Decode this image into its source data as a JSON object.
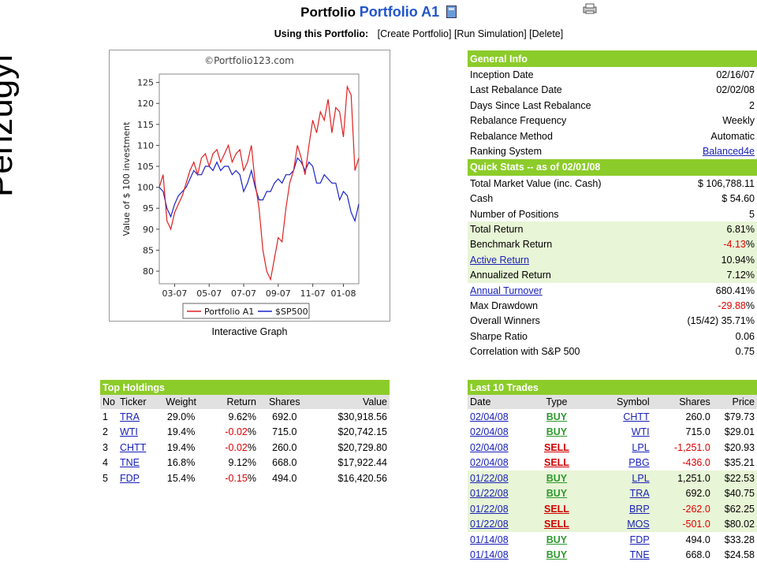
{
  "side_text": "Pénzügyi",
  "header": {
    "prefix": "Portfolio",
    "portfolio_name": "Portfolio A1",
    "using_label": "Using this Portfolio:",
    "actions": [
      "[Create Portfolio]",
      "[Run Simulation]",
      "[Delete]"
    ]
  },
  "chart_caption": "Interactive Graph",
  "chart_data": {
    "type": "line",
    "title": "©Portfolio123.com",
    "ylabel": "Value of $ 100 investment",
    "xlabel": "",
    "ylim": [
      77,
      127
    ],
    "yticks": [
      80,
      85,
      90,
      95,
      100,
      105,
      110,
      115,
      120,
      125
    ],
    "xticks": [
      "03-07",
      "05-07",
      "07-07",
      "09-07",
      "11-07",
      "01-08"
    ],
    "xtick_weeks": [
      4,
      13,
      22,
      31,
      40,
      48
    ],
    "x_range": [
      0,
      52
    ],
    "legend_position": "bottom",
    "series": [
      {
        "name": "Portfolio A1",
        "color": "#e02020",
        "values": [
          100,
          103,
          92,
          90,
          94,
          96,
          98,
          101,
          104,
          106,
          103,
          107,
          108,
          105,
          108,
          109,
          106,
          108,
          110,
          106,
          108,
          109,
          104,
          106,
          110,
          101,
          95,
          85,
          80,
          78,
          83,
          88,
          87,
          95,
          101,
          104,
          110,
          107,
          103,
          110,
          116,
          113,
          118,
          116,
          121,
          113,
          119,
          118,
          112,
          124,
          122,
          104,
          107
        ]
      },
      {
        "name": "$SP500",
        "color": "#1a22c8",
        "values": [
          100,
          99,
          95,
          93,
          96,
          98,
          99,
          100,
          102,
          104,
          103,
          103,
          105,
          105,
          104,
          106,
          104,
          105,
          105,
          103,
          104,
          103,
          99,
          101,
          104,
          100,
          97,
          97,
          99,
          99,
          101,
          102,
          101,
          103,
          103,
          104,
          107,
          106,
          104,
          106,
          105,
          101,
          101,
          103,
          102,
          101,
          101,
          97,
          99,
          98,
          94,
          92,
          96
        ]
      }
    ]
  },
  "general_info": {
    "title": "General Info",
    "rows": [
      {
        "label": "Inception Date",
        "value": "02/16/07"
      },
      {
        "label": "Last Rebalance Date",
        "value": "02/02/08"
      },
      {
        "label": "Days Since Last Rebalance",
        "value": "2"
      },
      {
        "label": "Rebalance Frequency",
        "value": "Weekly"
      },
      {
        "label": "Rebalance Method",
        "value": "Automatic"
      },
      {
        "label": "Ranking System",
        "value": "Balanced4e",
        "link": true
      }
    ]
  },
  "quick_stats": {
    "title": "Quick Stats -- as of 02/01/08",
    "rows": [
      {
        "label": "Total Market Value (inc. Cash)",
        "value": "$ 106,788.11"
      },
      {
        "label": "Cash",
        "value": "$ 54.60"
      },
      {
        "label": "Number of Positions",
        "value": "5"
      },
      {
        "label": "Total Return",
        "value": "6.81",
        "suffix": "%",
        "green": true
      },
      {
        "label": "Benchmark Return",
        "value": "-4.13",
        "suffix": "%",
        "green": true,
        "neg": true
      },
      {
        "label": "Active Return",
        "value": "10.94",
        "suffix": "%",
        "green": true,
        "link": true
      },
      {
        "label": "Annualized Return",
        "value": "7.12",
        "suffix": "%",
        "green": true
      },
      {
        "label": "Annual Turnover",
        "value": "680.41",
        "suffix": "%",
        "link": true
      },
      {
        "label": "Max Drawdown",
        "value": "-29.88",
        "suffix": "%",
        "neg": true
      },
      {
        "label": "Overall Winners",
        "value": "(15/42) 35.71%"
      },
      {
        "label": "Sharpe Ratio",
        "value": "0.06"
      },
      {
        "label": "Correlation with S&P 500",
        "value": "0.75"
      }
    ]
  },
  "top_holdings": {
    "title": "Top Holdings",
    "columns": [
      "No",
      "Ticker",
      "Weight",
      "Return",
      "Shares",
      "Value"
    ],
    "rows": [
      {
        "no": "1",
        "ticker": "TRA",
        "weight": "29.0%",
        "ret": "9.62",
        "neg": false,
        "shares": "692.0",
        "value": "$30,918.56"
      },
      {
        "no": "2",
        "ticker": "WTI",
        "weight": "19.4%",
        "ret": "-0.02",
        "neg": true,
        "shares": "715.0",
        "value": "$20,742.15"
      },
      {
        "no": "3",
        "ticker": "CHTT",
        "weight": "19.4%",
        "ret": "-0.02",
        "neg": true,
        "shares": "260.0",
        "value": "$20,729.80"
      },
      {
        "no": "4",
        "ticker": "TNE",
        "weight": "16.8%",
        "ret": "9.12",
        "neg": false,
        "shares": "668.0",
        "value": "$17,922.44"
      },
      {
        "no": "5",
        "ticker": "FDP",
        "weight": "15.4%",
        "ret": "-0.15",
        "neg": true,
        "shares": "494.0",
        "value": "$16,420.56"
      }
    ]
  },
  "trades": {
    "title": "Last 10 Trades",
    "columns": [
      "Date",
      "Type",
      "Symbol",
      "Shares",
      "Price"
    ],
    "rows": [
      {
        "date": "02/04/08",
        "type": "BUY",
        "symbol": "CHTT",
        "shares": "260.0",
        "price": "$79.73",
        "green": false
      },
      {
        "date": "02/04/08",
        "type": "BUY",
        "symbol": "WTI",
        "shares": "715.0",
        "price": "$29.01",
        "green": false
      },
      {
        "date": "02/04/08",
        "type": "SELL",
        "symbol": "LPL",
        "shares": "-1,251.0",
        "price": "$20.93",
        "green": false
      },
      {
        "date": "02/04/08",
        "type": "SELL",
        "symbol": "PBG",
        "shares": "-436.0",
        "price": "$35.21",
        "green": false
      },
      {
        "date": "01/22/08",
        "type": "BUY",
        "symbol": "LPL",
        "shares": "1,251.0",
        "price": "$22.53",
        "green": true
      },
      {
        "date": "01/22/08",
        "type": "BUY",
        "symbol": "TRA",
        "shares": "692.0",
        "price": "$40.75",
        "green": true
      },
      {
        "date": "01/22/08",
        "type": "SELL",
        "symbol": "BRP",
        "shares": "-262.0",
        "price": "$62.25",
        "green": true
      },
      {
        "date": "01/22/08",
        "type": "SELL",
        "symbol": "MOS",
        "shares": "-501.0",
        "price": "$80.02",
        "green": true
      },
      {
        "date": "01/14/08",
        "type": "BUY",
        "symbol": "FDP",
        "shares": "494.0",
        "price": "$33.28",
        "green": false
      },
      {
        "date": "01/14/08",
        "type": "BUY",
        "symbol": "TNE",
        "shares": "668.0",
        "price": "$24.58",
        "green": false
      }
    ]
  },
  "colors": {
    "accent_green": "#8ccc2a",
    "light_green": "#e8f5d6",
    "link": "#1a22b8",
    "negative": "#e00000",
    "buy": "#2e9a2e"
  }
}
